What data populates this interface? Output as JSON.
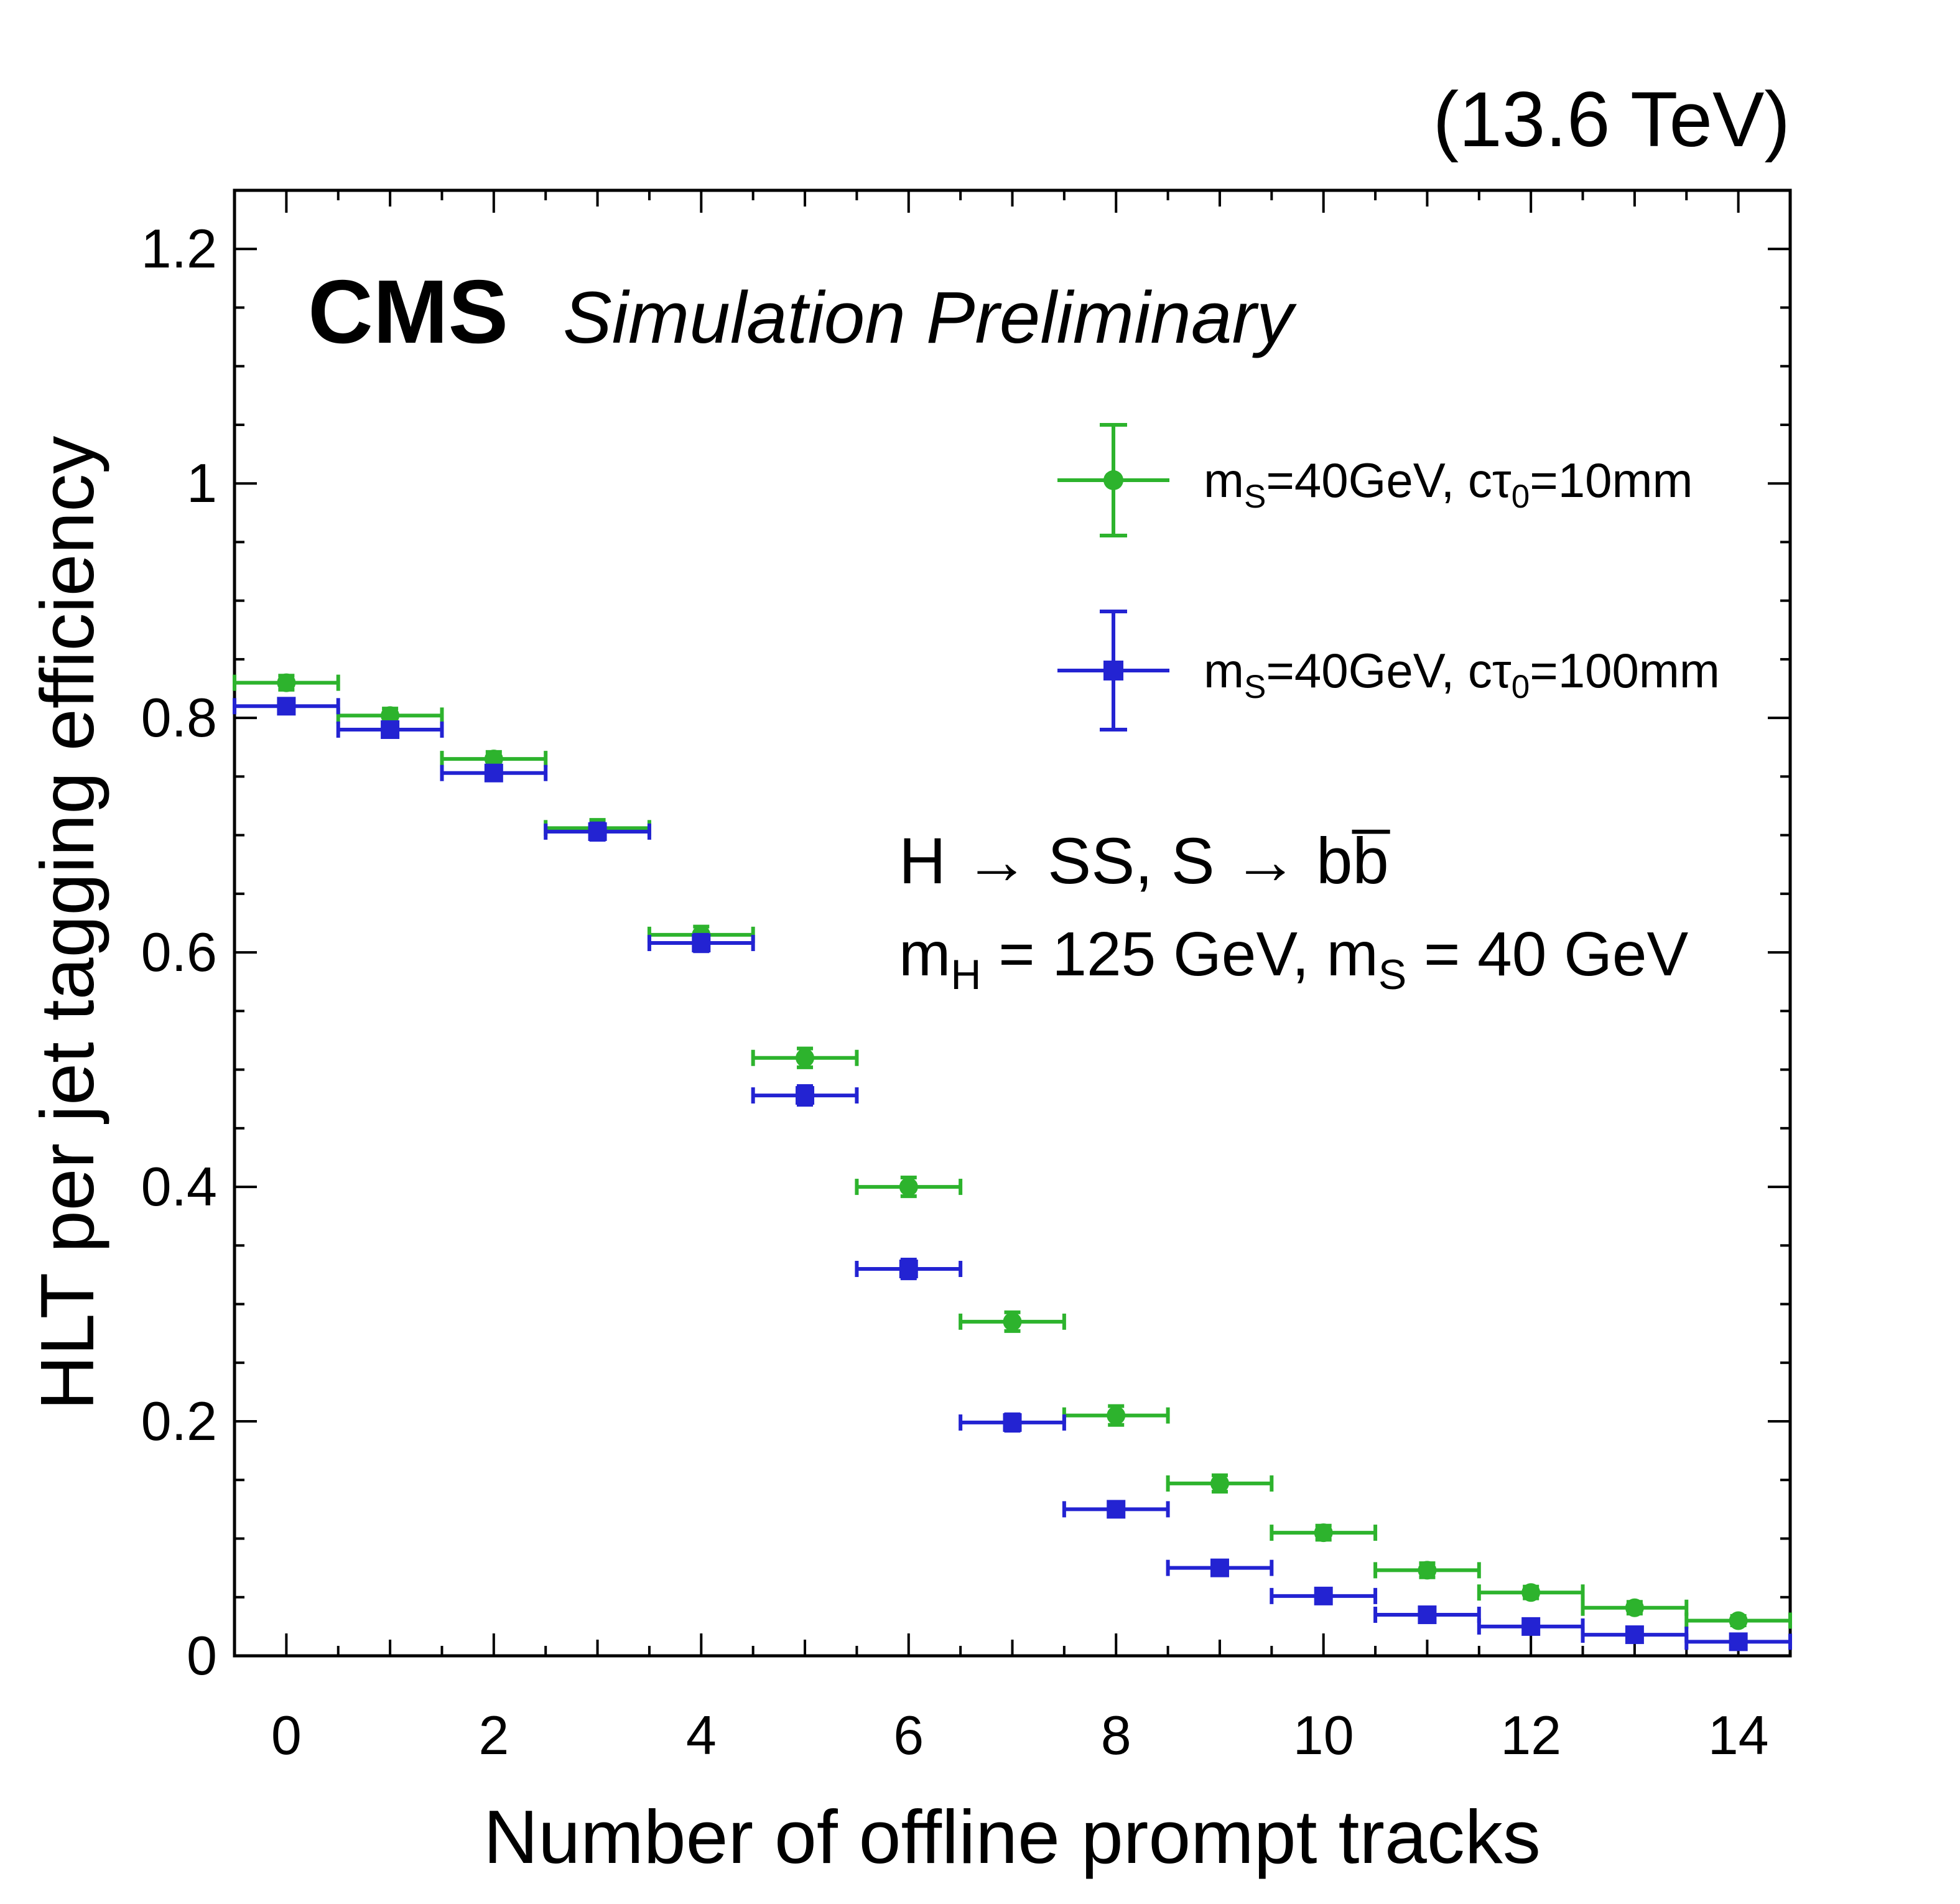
{
  "header": {
    "experiment": "CMS",
    "subtitle": "Simulation Preliminary",
    "energy": "(13.6 TeV)"
  },
  "annotation": {
    "line1": "H → SS, S → bb̅",
    "line2": "m_{H} = 125 GeV, m_{S} = 40 GeV"
  },
  "chart_data": {
    "type": "scatter",
    "title": "",
    "xlabel": "Number of offline prompt tracks",
    "ylabel": "HLT per jet tagging efficiency",
    "xlim": [
      -0.5,
      14.5
    ],
    "ylim": [
      0,
      1.25
    ],
    "grid": false,
    "legend_position": "upper-right",
    "x_major_ticks": [
      0,
      2,
      4,
      6,
      8,
      10,
      12,
      14
    ],
    "x_tick_labels": [
      "0",
      "2",
      "4",
      "6",
      "8",
      "10",
      "12",
      "14"
    ],
    "x_minor_step": 0.5,
    "y_major_ticks": [
      0,
      0.2,
      0.4,
      0.6,
      0.8,
      1.0,
      1.2
    ],
    "y_tick_labels": [
      "0",
      "0.2",
      "0.4",
      "0.6",
      "0.8",
      "1",
      "1.2"
    ],
    "y_minor_step": 0.05,
    "x": [
      0,
      1,
      2,
      3,
      4,
      5,
      6,
      7,
      8,
      9,
      10,
      11,
      12,
      13,
      14
    ],
    "xerr": 0.5,
    "series": [
      {
        "name": "m_{S}=40GeV, cτ_{0}=10mm",
        "marker": "circle",
        "color": "#2db32d",
        "values": [
          0.83,
          0.802,
          0.765,
          0.706,
          0.615,
          0.51,
          0.4,
          0.285,
          0.205,
          0.147,
          0.105,
          0.073,
          0.054,
          0.041,
          0.03
        ],
        "yerr": [
          0.006,
          0.006,
          0.006,
          0.007,
          0.007,
          0.008,
          0.008,
          0.008,
          0.008,
          0.007,
          0.006,
          0.006,
          0.005,
          0.005,
          0.004
        ]
      },
      {
        "name": "m_{S}=40GeV, cτ_{0}=100mm",
        "marker": "square",
        "color": "#2323d2",
        "values": [
          0.81,
          0.79,
          0.753,
          0.703,
          0.608,
          0.478,
          0.33,
          0.199,
          0.125,
          0.075,
          0.051,
          0.035,
          0.025,
          0.018,
          0.012
        ],
        "yerr": [
          0.006,
          0.006,
          0.006,
          0.007,
          0.007,
          0.008,
          0.008,
          0.007,
          0.006,
          0.005,
          0.005,
          0.004,
          0.004,
          0.003,
          0.003
        ]
      }
    ]
  }
}
